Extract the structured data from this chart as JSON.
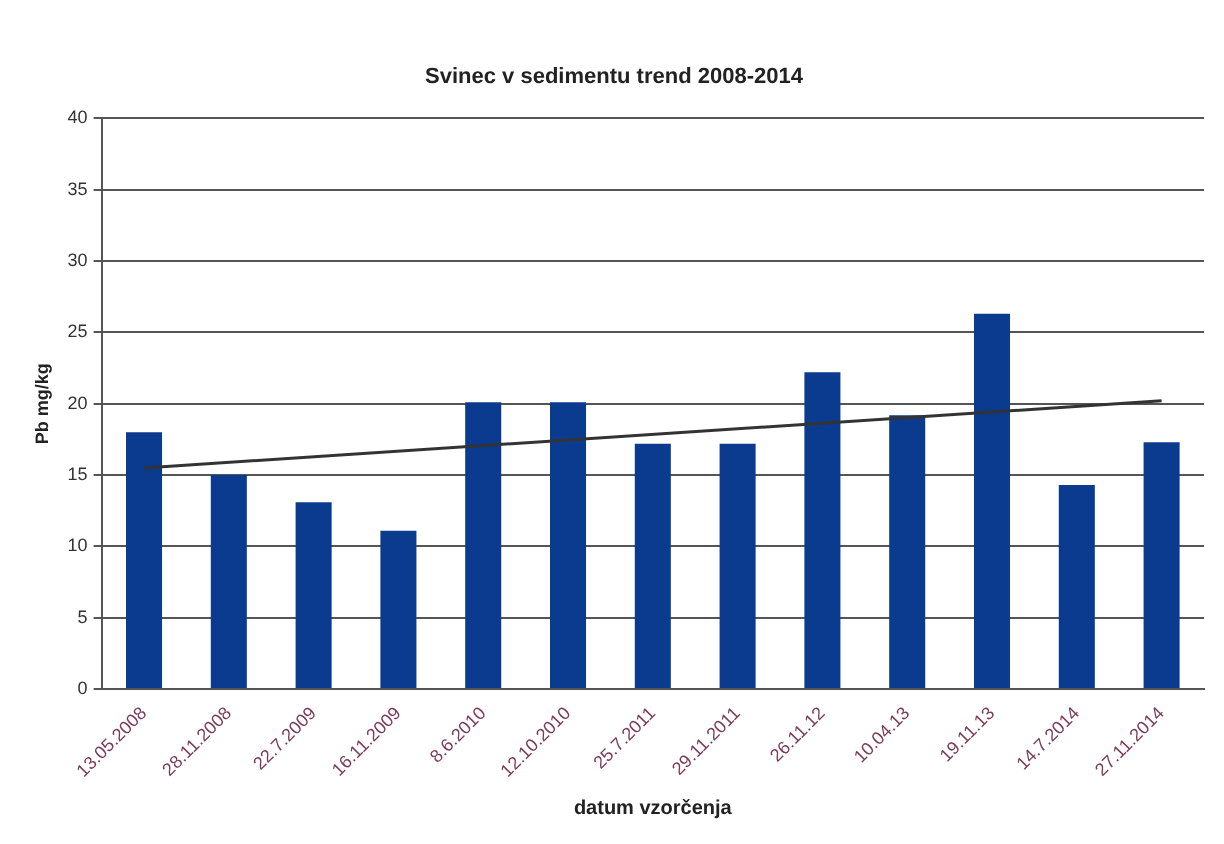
{
  "chart_data": {
    "type": "bar",
    "title": "Svinec v sedimentu trend 2008-2014",
    "xlabel": "datum vzorčenja",
    "ylabel": "Pb mg/kg",
    "categories": [
      "13.05.2008",
      "28.11.2008",
      "22.7.2009",
      "16.11.2009",
      "8.6.2010",
      "12.10.2010",
      "25.7.2011",
      "29.11.2011",
      "26.11.12",
      "10.04.13",
      "19.11.13",
      "14.7.2014",
      "27.11.2014"
    ],
    "series": [
      {
        "color": "#0b3b8f",
        "values": [
          18,
          15,
          13.1,
          11.1,
          20.1,
          20.1,
          17.2,
          17.2,
          22.2,
          19.2,
          26.3,
          14.3,
          17.3
        ]
      },
      {
        "type": "line",
        "color": "#333333",
        "x": [
          "13.05.2008",
          "27.11.2014"
        ],
        "values": [
          15.5,
          20.2
        ]
      }
    ],
    "ylim": [
      0,
      40
    ],
    "yticks": [
      0,
      5,
      10,
      15,
      20,
      25,
      30,
      35,
      40
    ],
    "grid": "y",
    "legend": false,
    "marker": "none"
  }
}
